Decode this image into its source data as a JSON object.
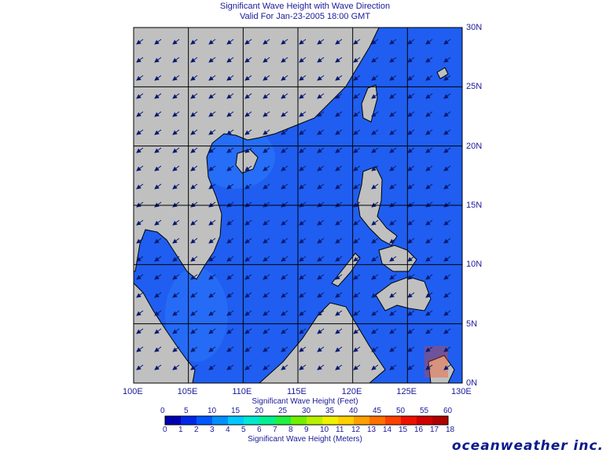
{
  "title": {
    "line1": "Significant Wave Height with Wave Direction",
    "line2": "Valid For Jan-23-2005 18:00 GMT"
  },
  "map": {
    "lon_ticks": [
      "100E",
      "105E",
      "110E",
      "115E",
      "120E",
      "125E",
      "130E"
    ],
    "lat_ticks": [
      "30N",
      "25N",
      "20N",
      "15N",
      "10N",
      "5N",
      "0N"
    ],
    "lon_range": [
      100,
      130
    ],
    "lat_range": [
      0,
      30
    ],
    "grid": true,
    "land_color": "#c0c0c0",
    "ocean_base_color": "#1f5ef0",
    "arrow_direction": "toward southwest"
  },
  "colorbar": {
    "feet_ticks": [
      "0",
      "5",
      "10",
      "15",
      "20",
      "25",
      "30",
      "35",
      "40",
      "45",
      "50",
      "55",
      "60"
    ],
    "meter_ticks": [
      "0",
      "1",
      "2",
      "3",
      "4",
      "5",
      "6",
      "7",
      "8",
      "9",
      "10",
      "11",
      "12",
      "13",
      "14",
      "15",
      "16",
      "17",
      "18"
    ],
    "feet_label": "Significant Wave Height (Feet)",
    "meters_label": "Significant Wave Height (Meters)",
    "colors": [
      "#0000b0",
      "#0028e8",
      "#0058ff",
      "#0090ff",
      "#00c8ff",
      "#00e8d0",
      "#00f090",
      "#20f040",
      "#70f000",
      "#b8f000",
      "#f0f000",
      "#ffd000",
      "#ffa000",
      "#ff7000",
      "#ff4000",
      "#f01000",
      "#d00000",
      "#b00000"
    ]
  },
  "brand": "oceanweather inc."
}
